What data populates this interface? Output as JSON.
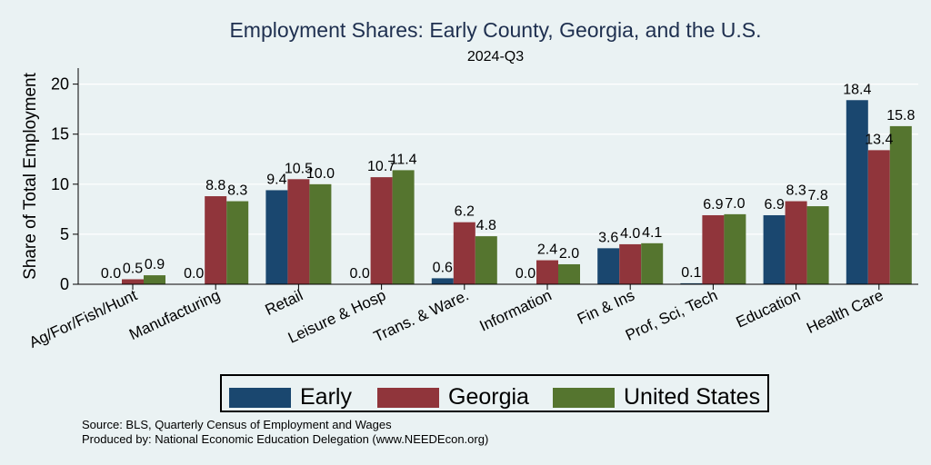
{
  "chart_data": {
    "type": "bar",
    "title": "Employment Shares: Early County, Georgia, and the U.S.",
    "subtitle": "2024-Q3",
    "ylabel": "Share of Total Employment",
    "xlabel": "",
    "ylim": [
      0,
      21.6
    ],
    "yticks": [
      0,
      5,
      10,
      15,
      20
    ],
    "ytick_labels": [
      "0",
      "5",
      "10",
      "15",
      "20"
    ],
    "grid": true,
    "legend_position": "bottom",
    "categories": [
      "Ag/For/Fish/Hunt",
      "Manufacturing",
      "Retail",
      "Leisure & Hosp",
      "Trans. & Ware.",
      "Information",
      "Fin & Ins",
      "Prof, Sci, Tech",
      "Education",
      "Health Care"
    ],
    "series": [
      {
        "name": "Early",
        "color": "#1a476f",
        "values": [
          0.0,
          0.0,
          9.4,
          0.0,
          0.6,
          0.0,
          3.6,
          0.1,
          6.9,
          18.4
        ],
        "labels": [
          "0.0",
          "0.0",
          "9.4",
          "0.0",
          "0.6",
          "0.0",
          "3.6",
          "0.1",
          "6.9",
          "18.4"
        ]
      },
      {
        "name": "Georgia",
        "color": "#90353b",
        "values": [
          0.5,
          8.8,
          10.5,
          10.7,
          6.2,
          2.4,
          4.0,
          6.9,
          8.3,
          13.4
        ],
        "labels": [
          "0.5",
          "8.8",
          "10.5",
          "10.7",
          "6.2",
          "2.4",
          "4.0",
          "6.9",
          "8.3",
          "13.4"
        ]
      },
      {
        "name": "United States",
        "color": "#55752f",
        "values": [
          0.9,
          8.3,
          10.0,
          11.4,
          4.8,
          2.0,
          4.1,
          7.0,
          7.8,
          15.8
        ],
        "labels": [
          "0.9",
          "8.3",
          "10.0",
          "11.4",
          "4.8",
          "2.0",
          "4.1",
          "7.0",
          "7.8",
          "15.8"
        ]
      }
    ]
  },
  "footer": {
    "source": "Source: BLS, Quarterly Census of Employment and Wages",
    "produced_by": "Produced by: National Economic Education Delegation (www.NEEDEcon.org)"
  }
}
